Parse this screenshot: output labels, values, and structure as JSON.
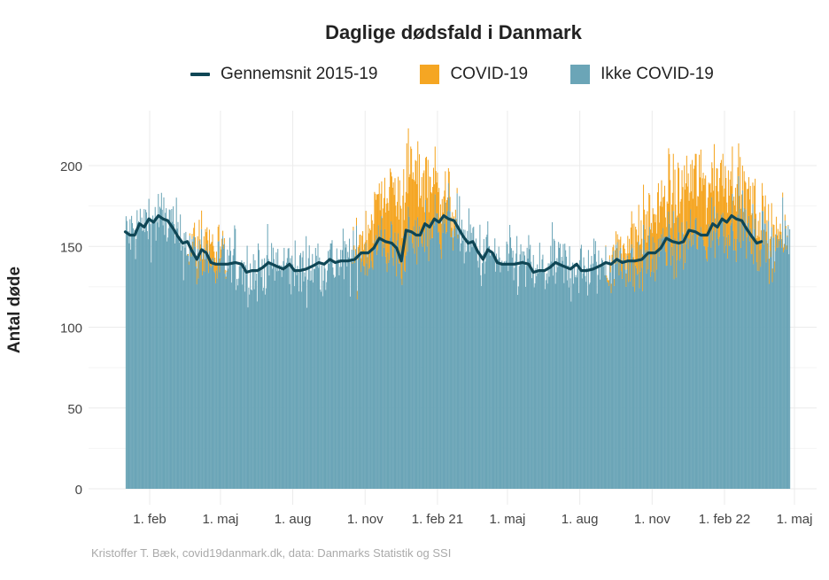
{
  "chart_data": {
    "type": "bar",
    "title": "Daglige dødsfald i Danmark",
    "xlabel": "",
    "ylabel": "Antal døde",
    "ylim": [
      0,
      225
    ],
    "yticks": [
      0,
      50,
      100,
      150,
      200
    ],
    "x_range": [
      "2020-01-01",
      "2022-04-30"
    ],
    "x_ticks": [
      {
        "date": "2020-02-01",
        "label": "1. feb"
      },
      {
        "date": "2020-05-01",
        "label": "1. maj"
      },
      {
        "date": "2020-08-01",
        "label": "1. aug"
      },
      {
        "date": "2020-11-01",
        "label": "1. nov"
      },
      {
        "date": "2021-02-01",
        "label": "1. feb 21"
      },
      {
        "date": "2021-05-01",
        "label": "1. maj"
      },
      {
        "date": "2021-08-01",
        "label": "1. aug"
      },
      {
        "date": "2021-11-01",
        "label": "1. nov"
      },
      {
        "date": "2022-02-01",
        "label": "1. feb 22"
      },
      {
        "date": "2022-05-01",
        "label": "1. maj"
      }
    ],
    "grid": true,
    "legend_position": "top",
    "colors": {
      "avg": "#0f4655",
      "covid": "#f5a623",
      "non_covid": "#6ba5b7"
    },
    "series": [
      {
        "name": "Gennemsnit 2015-19",
        "kind": "line",
        "points": [
          [
            "2020-01-01",
            159
          ],
          [
            "2020-01-07",
            157
          ],
          [
            "2020-01-13",
            157
          ],
          [
            "2020-01-19",
            164
          ],
          [
            "2020-01-25",
            162
          ],
          [
            "2020-01-31",
            167
          ],
          [
            "2020-02-06",
            165
          ],
          [
            "2020-02-12",
            169
          ],
          [
            "2020-02-18",
            167
          ],
          [
            "2020-02-24",
            166
          ],
          [
            "2020-03-02",
            161
          ],
          [
            "2020-03-08",
            156
          ],
          [
            "2020-03-14",
            152
          ],
          [
            "2020-03-20",
            153
          ],
          [
            "2020-03-26",
            147
          ],
          [
            "2020-04-01",
            142
          ],
          [
            "2020-04-07",
            148
          ],
          [
            "2020-04-13",
            146
          ],
          [
            "2020-04-19",
            140
          ],
          [
            "2020-04-25",
            139
          ],
          [
            "2020-05-01",
            139
          ],
          [
            "2020-05-10",
            139
          ],
          [
            "2020-05-20",
            140
          ],
          [
            "2020-05-28",
            139
          ],
          [
            "2020-06-03",
            134
          ],
          [
            "2020-06-10",
            135
          ],
          [
            "2020-06-17",
            135
          ],
          [
            "2020-06-24",
            137
          ],
          [
            "2020-07-01",
            140
          ],
          [
            "2020-07-10",
            138
          ],
          [
            "2020-07-20",
            136
          ],
          [
            "2020-07-28",
            139
          ],
          [
            "2020-08-03",
            135
          ],
          [
            "2020-08-10",
            135
          ],
          [
            "2020-08-18",
            136
          ],
          [
            "2020-08-27",
            138
          ],
          [
            "2020-09-03",
            140
          ],
          [
            "2020-09-10",
            139
          ],
          [
            "2020-09-17",
            142
          ],
          [
            "2020-09-24",
            140
          ],
          [
            "2020-10-01",
            141
          ],
          [
            "2020-10-10",
            141
          ],
          [
            "2020-10-19",
            142
          ],
          [
            "2020-10-27",
            146
          ],
          [
            "2020-11-05",
            146
          ],
          [
            "2020-11-12",
            149
          ],
          [
            "2020-11-19",
            155
          ],
          [
            "2020-11-27",
            153
          ],
          [
            "2020-12-05",
            152
          ],
          [
            "2020-12-11",
            149
          ],
          [
            "2020-12-17",
            141
          ],
          [
            "2020-12-23",
            160
          ],
          [
            "2020-12-30",
            159
          ],
          [
            "2021-01-05",
            157
          ],
          [
            "2021-01-10",
            157
          ],
          [
            "2021-01-16",
            164
          ],
          [
            "2021-01-22",
            162
          ],
          [
            "2021-01-28",
            167
          ],
          [
            "2021-02-03",
            165
          ],
          [
            "2021-02-09",
            169
          ],
          [
            "2021-02-15",
            167
          ],
          [
            "2021-02-22",
            166
          ],
          [
            "2021-02-28",
            161
          ],
          [
            "2021-03-06",
            156
          ],
          [
            "2021-03-12",
            152
          ],
          [
            "2021-03-18",
            153
          ],
          [
            "2021-03-24",
            147
          ],
          [
            "2021-03-31",
            142
          ],
          [
            "2021-04-06",
            148
          ],
          [
            "2021-04-12",
            146
          ],
          [
            "2021-04-18",
            140
          ],
          [
            "2021-04-24",
            139
          ],
          [
            "2021-05-01",
            139
          ],
          [
            "2021-05-10",
            139
          ],
          [
            "2021-05-20",
            140
          ],
          [
            "2021-05-28",
            139
          ],
          [
            "2021-06-03",
            134
          ],
          [
            "2021-06-10",
            135
          ],
          [
            "2021-06-17",
            135
          ],
          [
            "2021-06-24",
            137
          ],
          [
            "2021-07-01",
            140
          ],
          [
            "2021-07-10",
            138
          ],
          [
            "2021-07-20",
            136
          ],
          [
            "2021-07-28",
            139
          ],
          [
            "2021-08-03",
            135
          ],
          [
            "2021-08-10",
            135
          ],
          [
            "2021-08-18",
            136
          ],
          [
            "2021-08-27",
            138
          ],
          [
            "2021-09-03",
            140
          ],
          [
            "2021-09-10",
            139
          ],
          [
            "2021-09-17",
            142
          ],
          [
            "2021-09-24",
            140
          ],
          [
            "2021-10-01",
            141
          ],
          [
            "2021-10-10",
            141
          ],
          [
            "2021-10-19",
            142
          ],
          [
            "2021-10-27",
            146
          ],
          [
            "2021-11-05",
            146
          ],
          [
            "2021-11-12",
            149
          ],
          [
            "2021-11-19",
            155
          ],
          [
            "2021-11-27",
            153
          ],
          [
            "2021-12-05",
            152
          ],
          [
            "2021-12-11",
            153
          ],
          [
            "2021-12-18",
            160
          ],
          [
            "2021-12-26",
            159
          ],
          [
            "2022-01-02",
            157
          ],
          [
            "2022-01-10",
            157
          ],
          [
            "2022-01-17",
            164
          ],
          [
            "2022-01-23",
            162
          ],
          [
            "2022-01-29",
            167
          ],
          [
            "2022-02-04",
            165
          ],
          [
            "2022-02-10",
            169
          ],
          [
            "2022-02-16",
            167
          ],
          [
            "2022-02-23",
            166
          ],
          [
            "2022-03-01",
            161
          ],
          [
            "2022-03-08",
            156
          ],
          [
            "2022-03-14",
            152
          ],
          [
            "2022-03-20",
            153
          ]
        ]
      },
      {
        "name": "COVID-19",
        "kind": "bar",
        "periods": [
          {
            "start": "2020-03-20",
            "end": "2020-05-10",
            "peak": 12
          },
          {
            "start": "2020-10-15",
            "end": "2021-03-01",
            "peak": 40
          },
          {
            "start": "2021-09-01",
            "end": "2022-04-25",
            "peak": 35
          }
        ]
      },
      {
        "name": "Ikke COVID-19",
        "kind": "bar",
        "note": "stacked below COVID-19; daily total ≈ 2015-19 average ± noise, range ~112–223"
      }
    ]
  },
  "caption": "Kristoffer T. Bæk, covid19danmark.dk, data: Danmarks Statistik og SSI"
}
